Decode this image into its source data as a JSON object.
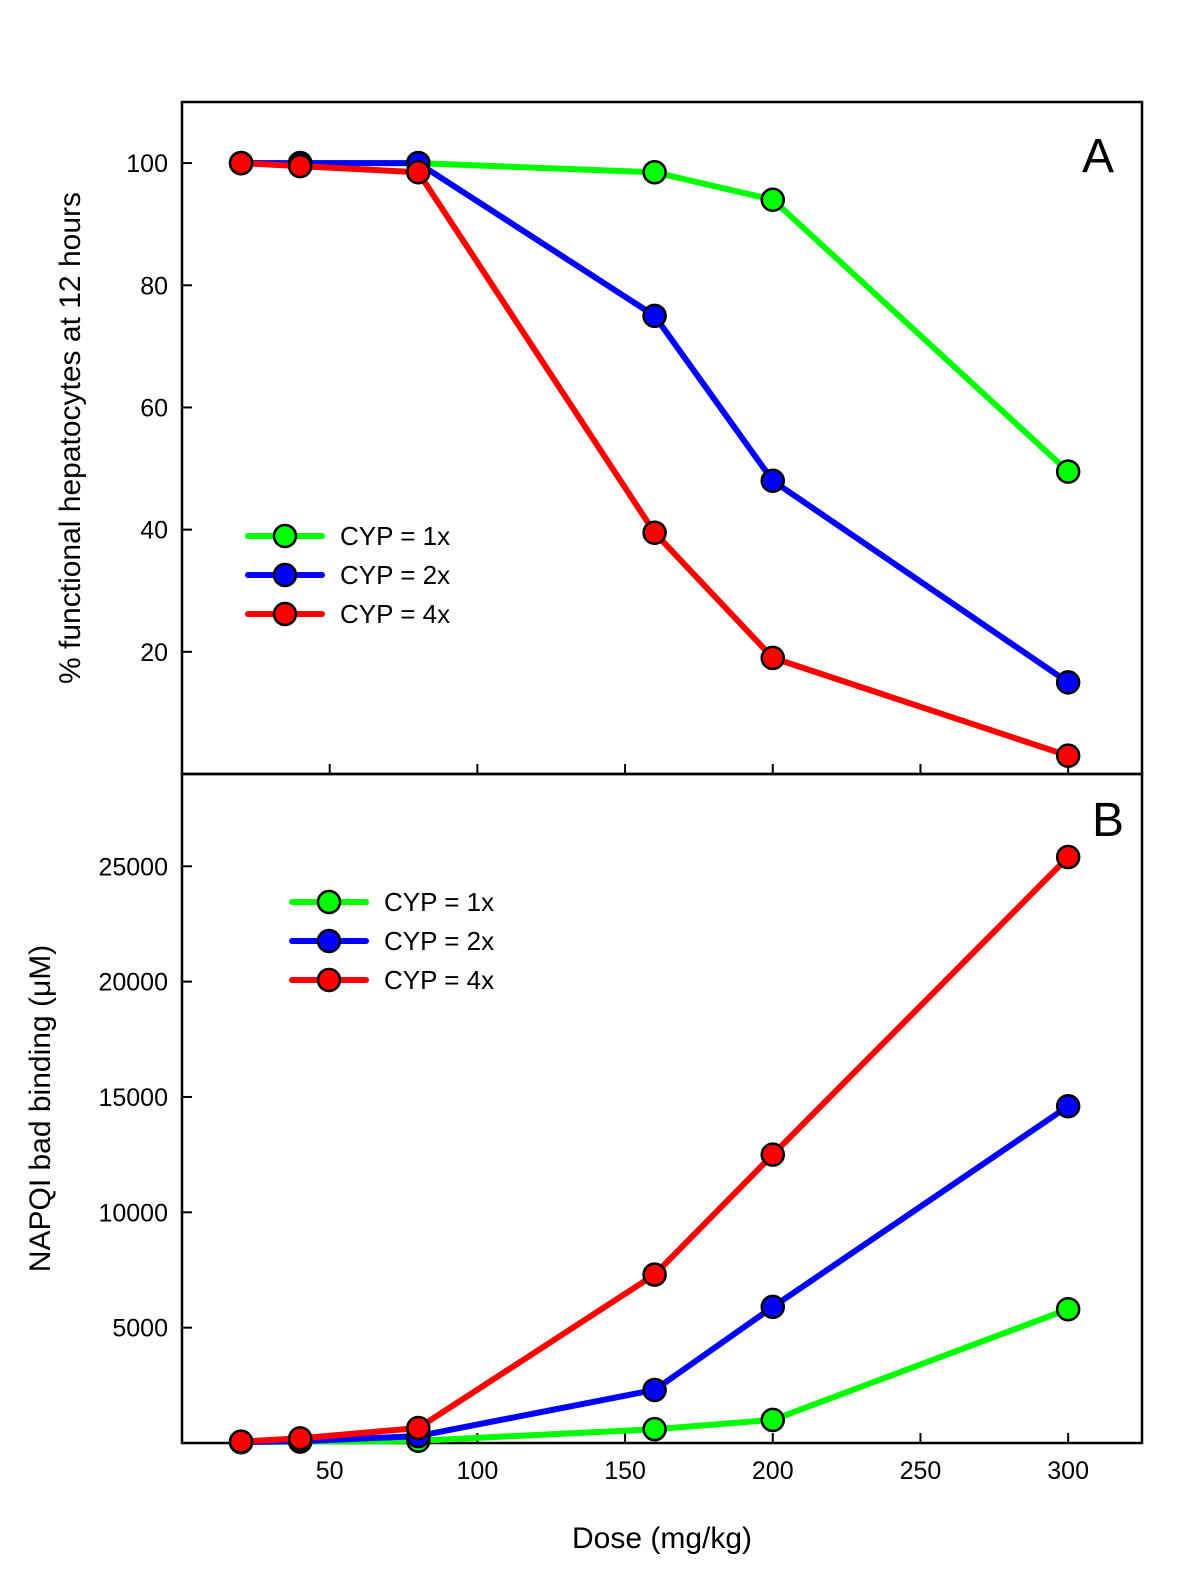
{
  "colors": {
    "cyp_1x": "#00ff00",
    "cyp_2x": "#0000ff",
    "cyp_4x": "#ff0000",
    "axis": "#000000"
  },
  "chart_data": [
    {
      "type": "line",
      "panel_label": "A",
      "title": "",
      "xlabel": "",
      "ylabel": "% functional hepatocytes at 12 hours",
      "xlim": [
        0,
        325
      ],
      "ylim": [
        0,
        110
      ],
      "x_ticks": [
        50,
        100,
        150,
        200,
        250,
        300
      ],
      "x_tick_labels": [
        "",
        "",
        "",
        "",
        "",
        ""
      ],
      "y_ticks": [
        20,
        40,
        60,
        80,
        100
      ],
      "y_tick_labels": [
        "20",
        "40",
        "60",
        "80",
        "100"
      ],
      "grid": false,
      "legend": {
        "position": "lower-left"
      },
      "x": [
        20,
        40,
        80,
        160,
        200,
        300
      ],
      "series": [
        {
          "name": "CYP = 1x",
          "color_key": "cyp_1x",
          "values": [
            100,
            100,
            100,
            98.5,
            94,
            49.5
          ]
        },
        {
          "name": "CYP = 2x",
          "color_key": "cyp_2x",
          "values": [
            100,
            100,
            100,
            75,
            48,
            15
          ]
        },
        {
          "name": "CYP = 4x",
          "color_key": "cyp_4x",
          "values": [
            100,
            99.5,
            98.5,
            39.5,
            19,
            3
          ]
        }
      ]
    },
    {
      "type": "line",
      "panel_label": "B",
      "title": "",
      "xlabel": "Dose (mg/kg)",
      "ylabel": "NAPQI bad binding (μM)",
      "xlim": [
        0,
        325
      ],
      "ylim": [
        0,
        29000
      ],
      "x_ticks": [
        50,
        100,
        150,
        200,
        250,
        300
      ],
      "x_tick_labels": [
        "50",
        "100",
        "150",
        "200",
        "250",
        "300"
      ],
      "y_ticks": [
        5000,
        10000,
        15000,
        20000,
        25000
      ],
      "y_tick_labels": [
        "5000",
        "10000",
        "15000",
        "20000",
        "25000"
      ],
      "grid": false,
      "legend": {
        "position": "upper-left"
      },
      "x": [
        20,
        40,
        80,
        160,
        200,
        300
      ],
      "series": [
        {
          "name": "CYP = 1x",
          "color_key": "cyp_1x",
          "values": [
            40,
            60,
            100,
            600,
            1000,
            5800
          ]
        },
        {
          "name": "CYP = 2x",
          "color_key": "cyp_2x",
          "values": [
            40,
            80,
            300,
            2300,
            5900,
            14600
          ]
        },
        {
          "name": "CYP = 4x",
          "color_key": "cyp_4x",
          "values": [
            60,
            200,
            650,
            7300,
            12500,
            25400
          ]
        }
      ]
    }
  ]
}
